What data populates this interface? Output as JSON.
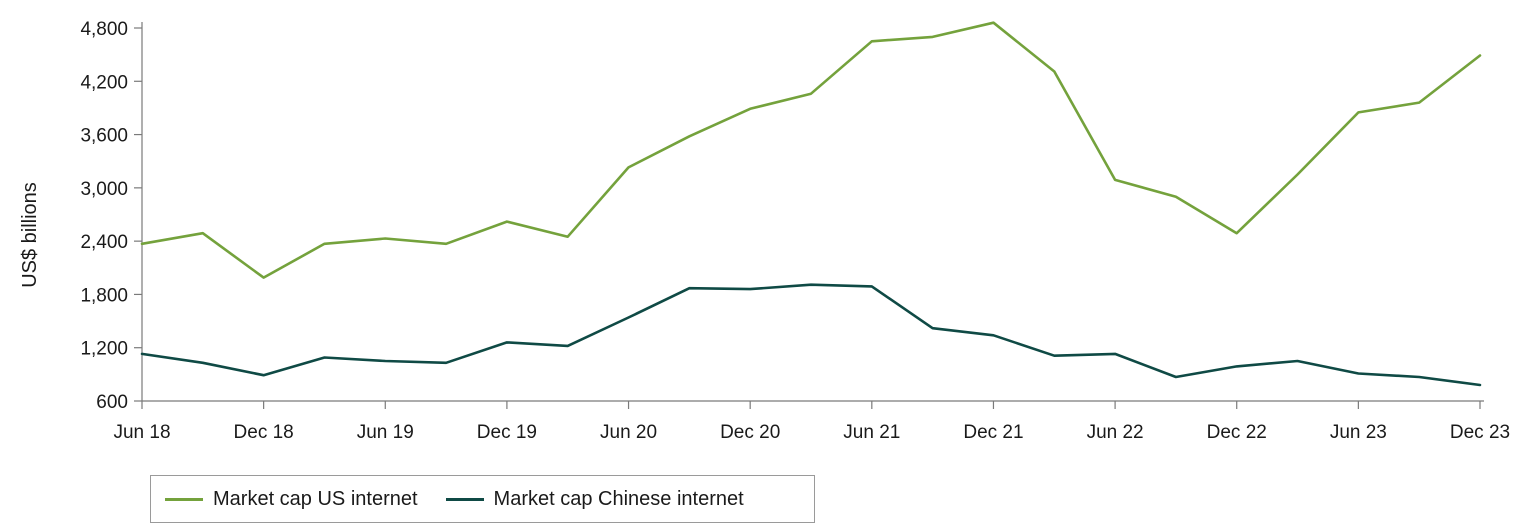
{
  "chart_data": {
    "type": "line",
    "ylabel": "US$ billions",
    "xlabel": "",
    "title": "",
    "ylim": [
      600,
      4800
    ],
    "yticks": [
      600,
      1200,
      1800,
      2400,
      3000,
      3600,
      4200,
      4800
    ],
    "ytick_labels": [
      "600",
      "1,200",
      "1,800",
      "2,400",
      "3,000",
      "3,600",
      "4,200",
      "4,800"
    ],
    "x": [
      "Jun 18",
      "Sep 18",
      "Dec 18",
      "Mar 19",
      "Jun 19",
      "Sep 19",
      "Dec 19",
      "Mar 20",
      "Jun 20",
      "Sep 20",
      "Dec 20",
      "Mar 21",
      "Jun 21",
      "Sep 21",
      "Dec 21",
      "Mar 22",
      "Jun 22",
      "Sep 22",
      "Dec 22",
      "Mar 23",
      "Jun 23",
      "Sep 23",
      "Dec 23"
    ],
    "xtick_labels": [
      "Jun 18",
      "Dec 18",
      "Jun 19",
      "Dec 19",
      "Jun 20",
      "Dec 20",
      "Jun 21",
      "Dec 21",
      "Jun 22",
      "Dec 22",
      "Jun 23",
      "Dec 23"
    ],
    "series": [
      {
        "name": "Market cap US internet",
        "color": "#74a23c",
        "values": [
          2370,
          2490,
          1990,
          2370,
          2430,
          2370,
          2620,
          2450,
          3230,
          3580,
          3890,
          4060,
          4650,
          4700,
          4860,
          4310,
          3090,
          2900,
          2490,
          3150,
          3850,
          3960,
          4490
        ]
      },
      {
        "name": "Market cap Chinese internet",
        "color": "#0f4a45",
        "values": [
          1130,
          1030,
          890,
          1090,
          1050,
          1030,
          1260,
          1220,
          1540,
          1870,
          1860,
          1910,
          1890,
          1420,
          1340,
          1110,
          1130,
          870,
          990,
          1050,
          910,
          870,
          780
        ]
      }
    ],
    "grid": false,
    "legend_position": "bottom-left"
  },
  "icons": []
}
